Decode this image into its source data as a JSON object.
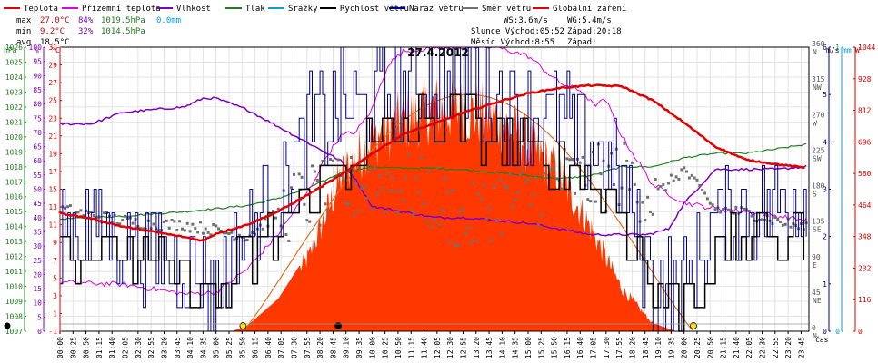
{
  "title": "27.4.2012",
  "legend": [
    {
      "label": "Teplota",
      "color": "#e00000"
    },
    {
      "label": "Přízemní teplota",
      "color": "#e000e0"
    },
    {
      "label": "Vlhkost",
      "color": "#8000c0"
    },
    {
      "label": "Tlak",
      "color": "#208020"
    },
    {
      "label": "Srážky",
      "color": "#00a0e0"
    },
    {
      "label": "Rychlost větru",
      "color": "#000000"
    },
    {
      "label": "Náraz větru",
      "color": "#000090"
    },
    {
      "label": "Směr větru",
      "color": "#707070"
    },
    {
      "label": "Globální záření",
      "color": "#e00000"
    }
  ],
  "stats": {
    "max": {
      "label": "max",
      "temp": "27.0°C",
      "hum": "84%",
      "press": "1019.5hPa",
      "rain": "0.0mm"
    },
    "min": {
      "label": "min",
      "temp": "9.2°C",
      "hum": "32%",
      "press": "1014.5hPa"
    },
    "avg": {
      "label": "avg",
      "temp": "18.5°C"
    }
  },
  "wind_info": {
    "ws": "WS:3.6m/s",
    "wg": "WG:5.4m/s"
  },
  "sun_info": {
    "rise": "Slunce Východ:05:52",
    "set": "Západ:20:18"
  },
  "moon_info": {
    "rise": "Měsíc  Východ:8:55",
    "set": "Západ:"
  },
  "axis_units": {
    "hpa": "hPa",
    "pct": "%",
    "degc": "°C",
    "ms": "m/s",
    "mm": "mm",
    "w": "W",
    "time": "čas"
  },
  "ticks": {
    "hpa": [
      "1007",
      "1008",
      "1009",
      "1010",
      "1011",
      "1012",
      "1013",
      "1014",
      "1015",
      "1016",
      "1017",
      "1018",
      "1019",
      "1020",
      "1021",
      "1022",
      "1023",
      "1024",
      "1025",
      "1026"
    ],
    "pct": [
      "0",
      "5",
      "10",
      "15",
      "20",
      "25",
      "30",
      "35",
      "40",
      "45",
      "50",
      "55",
      "60",
      "65",
      "70",
      "75",
      "80",
      "85",
      "90",
      "95",
      "100"
    ],
    "degc": [
      "-1",
      "1",
      "3",
      "5",
      "7",
      "9",
      "11",
      "13",
      "15",
      "17",
      "19",
      "21",
      "23",
      "25",
      "27",
      "29",
      "31"
    ],
    "deg": [
      "0",
      "45",
      "90",
      "135",
      "180",
      "225",
      "270",
      "315",
      "360"
    ],
    "compass": [
      "N",
      "NE",
      "E",
      "SE",
      "S",
      "SW",
      "W",
      "NW",
      "N"
    ],
    "ms": [
      "0",
      "1",
      "2",
      "3",
      "4",
      "5",
      "6"
    ],
    "mm": [
      "0",
      "1"
    ],
    "w": [
      "0",
      "116",
      "232",
      "348",
      "464",
      "580",
      "696",
      "812",
      "928",
      "1044"
    ],
    "time": [
      "00:00",
      "00:25",
      "00:50",
      "01:15",
      "01:40",
      "02:05",
      "02:30",
      "02:55",
      "03:20",
      "03:45",
      "04:10",
      "04:35",
      "05:00",
      "05:25",
      "05:50",
      "06:15",
      "06:40",
      "07:05",
      "07:30",
      "07:55",
      "08:20",
      "08:45",
      "09:10",
      "09:35",
      "10:00",
      "10:25",
      "10:50",
      "11:15",
      "11:40",
      "12:05",
      "12:30",
      "12:55",
      "13:20",
      "13:45",
      "14:10",
      "14:35",
      "15:00",
      "15:25",
      "15:50",
      "16:15",
      "16:40",
      "17:05",
      "17:30",
      "17:55",
      "18:20",
      "18:45",
      "19:10",
      "19:35",
      "20:00",
      "20:25",
      "20:50",
      "21:15",
      "21:40",
      "22:05",
      "22:30",
      "22:55",
      "23:20",
      "23:45"
    ]
  },
  "chart_data": {
    "type": "line",
    "title": "27.4.2012",
    "x_range": [
      "00:00",
      "24:00"
    ],
    "axes": {
      "pressure_hPa": [
        1007,
        1026
      ],
      "humidity_pct": [
        0,
        100
      ],
      "temperature_C": [
        -1,
        31
      ],
      "wind_dir_deg": [
        0,
        360
      ],
      "wind_speed_ms": [
        0,
        6
      ],
      "rain_mm": [
        0,
        1
      ],
      "radiation_W": [
        0,
        1044
      ]
    },
    "series": [
      {
        "name": "Teplota",
        "unit": "°C",
        "x": [
          "00:00",
          "01:00",
          "02:00",
          "03:00",
          "04:00",
          "04:35",
          "05:00",
          "06:00",
          "07:00",
          "08:00",
          "09:00",
          "10:00",
          "11:00",
          "12:00",
          "13:00",
          "14:00",
          "15:00",
          "16:00",
          "17:00",
          "18:00",
          "19:00",
          "20:00",
          "21:00",
          "22:00",
          "23:00",
          "23:55"
        ],
        "y": [
          12.3,
          11.7,
          10.8,
          10.2,
          9.6,
          9.2,
          10.0,
          11.0,
          12.5,
          14.5,
          16.6,
          19.0,
          21.2,
          22.4,
          23.7,
          24.8,
          25.8,
          26.4,
          26.7,
          26.6,
          25.0,
          22.5,
          19.8,
          18.3,
          17.8,
          17.4
        ]
      },
      {
        "name": "Přízemní teplota",
        "unit": "°C",
        "x": [
          "00:00",
          "02:00",
          "04:00",
          "05:00",
          "06:00",
          "07:00",
          "08:00",
          "08:30",
          "09:00",
          "09:30",
          "10:00",
          "10:30",
          "11:00",
          "12:00",
          "13:00",
          "14:00",
          "15:00",
          "16:00",
          "16:45",
          "17:05",
          "17:30",
          "18:00",
          "19:00",
          "20:00",
          "21:00",
          "22:00",
          "23:55"
        ],
        "y": [
          4.5,
          4.3,
          3.2,
          3.4,
          6.0,
          10.0,
          15.0,
          18.5,
          21.0,
          21.5,
          24.0,
          29.0,
          30.5,
          31.0,
          31.0,
          31.0,
          30.0,
          27.0,
          26.0,
          24.5,
          25.0,
          21.0,
          15.5,
          13.5,
          12.8,
          12.5,
          11.5
        ]
      },
      {
        "name": "Vlhkost",
        "unit": "%",
        "x": [
          "00:00",
          "01:00",
          "02:00",
          "03:00",
          "04:00",
          "04:35",
          "05:00",
          "06:00",
          "07:00",
          "08:00",
          "09:00",
          "09:30",
          "10:00",
          "11:00",
          "12:00",
          "13:00",
          "14:00",
          "15:00",
          "16:00",
          "17:00",
          "18:00",
          "18:50",
          "19:30",
          "20:00",
          "21:00",
          "22:00",
          "23:00",
          "23:55"
        ],
        "y": [
          73,
          73,
          77,
          78,
          79,
          82,
          82,
          78,
          72,
          66,
          60,
          53,
          44,
          42,
          40,
          40,
          39,
          38,
          36,
          34,
          34,
          34,
          36,
          45,
          57,
          57,
          57,
          58
        ]
      },
      {
        "name": "Tlak",
        "unit": "hPa",
        "x": [
          "00:00",
          "02:00",
          "04:00",
          "06:00",
          "07:00",
          "08:00",
          "09:00",
          "10:00",
          "11:00",
          "12:00",
          "13:00",
          "14:00",
          "15:00",
          "16:00",
          "17:00",
          "18:00",
          "19:00",
          "20:00",
          "21:00",
          "22:00",
          "23:00",
          "23:55"
        ],
        "y": [
          1014.5,
          1014.7,
          1015.0,
          1015.4,
          1015.9,
          1016.6,
          1017.6,
          1018.0,
          1017.9,
          1017.9,
          1017.8,
          1017.6,
          1017.4,
          1017.2,
          1017.4,
          1018.0,
          1018.0,
          1018.6,
          1018.9,
          1018.9,
          1019.2,
          1019.5
        ]
      },
      {
        "name": "Rychlost větru",
        "unit": "m/s",
        "x": [
          "00:00",
          "02:00",
          "04:00",
          "05:00",
          "06:00",
          "07:00",
          "08:00",
          "09:00",
          "10:00",
          "11:00",
          "12:00",
          "13:00",
          "14:00",
          "15:00",
          "16:00",
          "17:00",
          "18:00",
          "19:00",
          "20:00",
          "21:00",
          "22:00",
          "23:00",
          "23:55"
        ],
        "y": [
          1.8,
          1.6,
          1.0,
          0.7,
          1.5,
          2.1,
          2.9,
          3.5,
          4.0,
          4.2,
          4.4,
          4.5,
          4.0,
          3.8,
          3.5,
          3.3,
          2.5,
          0.8,
          0.7,
          1.5,
          2.0,
          2.0,
          2.3
        ]
      },
      {
        "name": "Náraz větru",
        "unit": "m/s",
        "x": [
          "00:00",
          "02:00",
          "04:00",
          "05:00",
          "06:00",
          "07:00",
          "08:00",
          "09:00",
          "10:00",
          "11:00",
          "12:00",
          "13:00",
          "14:00",
          "15:00",
          "16:00",
          "17:00",
          "18:00",
          "19:00",
          "20:00",
          "21:00",
          "22:00",
          "23:00",
          "23:55"
        ],
        "y": [
          2.3,
          2.0,
          1.3,
          0.9,
          2.2,
          3.0,
          4.2,
          4.7,
          4.8,
          5.2,
          5.4,
          5.3,
          4.9,
          4.6,
          4.4,
          4.0,
          3.2,
          1.0,
          0.9,
          2.3,
          2.6,
          2.6,
          3.0
        ]
      },
      {
        "name": "Směr větru",
        "unit": "°",
        "x": [
          "00:00",
          "02:00",
          "03:00",
          "04:00",
          "05:00",
          "06:00",
          "07:00",
          "08:00",
          "09:00",
          "10:00",
          "11:00",
          "12:00",
          "13:00",
          "14:00",
          "15:00",
          "16:00",
          "17:00",
          "18:00",
          "19:00",
          "20:00",
          "21:00",
          "22:00",
          "23:00",
          "23:55"
        ],
        "y": [
          155,
          140,
          135,
          135,
          128,
          120,
          150,
          170,
          175,
          190,
          185,
          170,
          135,
          165,
          170,
          195,
          190,
          200,
          170,
          205,
          155,
          150,
          140,
          130
        ]
      },
      {
        "name": "Globální záření",
        "unit": "W",
        "x": [
          "05:30",
          "06:00",
          "07:00",
          "08:00",
          "09:00",
          "10:00",
          "11:00",
          "12:00",
          "13:00",
          "14:00",
          "15:00",
          "16:00",
          "17:00",
          "18:00",
          "19:00",
          "19:45"
        ],
        "y": [
          0,
          20,
          120,
          300,
          610,
          760,
          830,
          880,
          870,
          840,
          740,
          620,
          410,
          170,
          30,
          0
        ]
      }
    ]
  }
}
